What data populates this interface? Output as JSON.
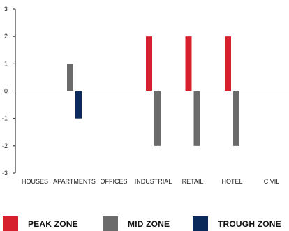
{
  "chart_data": {
    "type": "bar",
    "categories": [
      "HOUSES",
      "APARTMENTS",
      "OFFICES",
      "INDUSTRIAL",
      "RETAIL",
      "HOTEL",
      "CIVIL"
    ],
    "series": [
      {
        "name": "PEAK ZONE",
        "color": "#d7202d",
        "values": [
          0,
          0,
          0,
          2,
          2,
          2,
          0
        ]
      },
      {
        "name": "MID ZONE",
        "color": "#6b6b6b",
        "values": [
          0,
          1,
          0,
          -2,
          -2,
          -2,
          0
        ]
      },
      {
        "name": "TROUGH ZONE",
        "color": "#0b2a5c",
        "values": [
          0,
          -1,
          0,
          0,
          0,
          0,
          0
        ]
      }
    ],
    "yticks": [
      3,
      2,
      1,
      0,
      -1,
      -2,
      -3
    ],
    "ylim": [
      -3,
      3
    ],
    "grid": false,
    "legend_position": "bottom"
  },
  "legend": [
    {
      "label": "PEAK ZONE",
      "color": "#d7202d"
    },
    {
      "label": "MID ZONE",
      "color": "#6b6b6b"
    },
    {
      "label": "TROUGH ZONE",
      "color": "#0b2a5c"
    }
  ]
}
